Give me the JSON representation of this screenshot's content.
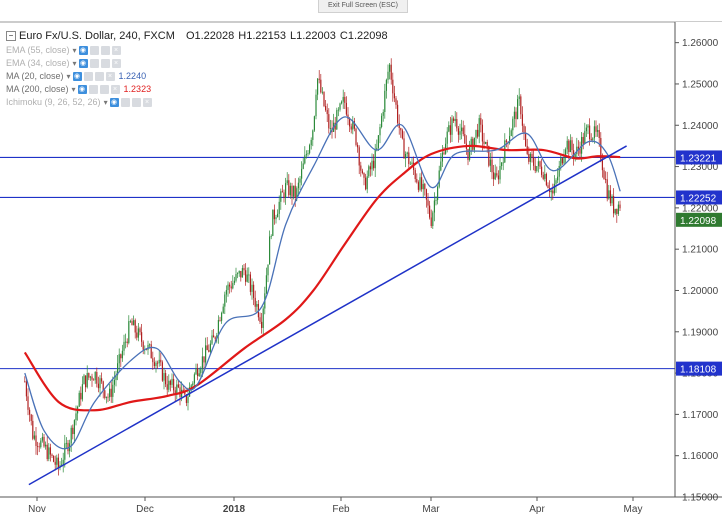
{
  "exit_button": "Exit Full Screen (ESC)",
  "legend": {
    "collapse": "−",
    "symbol": "Euro Fx/U.S. Dollar, 240, FXCM",
    "open": "O1.22028",
    "high": "H1.22153",
    "low": "L1.22003",
    "close": "C1.22098",
    "studies": [
      {
        "name": "EMA (55, close)",
        "value": "",
        "dim": true
      },
      {
        "name": "EMA (34, close)",
        "value": "",
        "dim": true
      },
      {
        "name": "MA (20, close)",
        "value": "1.2240",
        "value_color": "#3a62b4",
        "dim": false
      },
      {
        "name": "MA (200, close)",
        "value": "1.2323",
        "value_color": "#e02020",
        "dim": false
      },
      {
        "name": "Ichimoku (9, 26, 52, 26)",
        "value": "",
        "dim": true
      }
    ]
  },
  "colors": {
    "up_candle": "#2c8a3a",
    "down_candle": "#b02020",
    "ma20": "#4a72b8",
    "ma200": "#e01818",
    "trendline": "#1f32c8",
    "hline": "#1f32c8",
    "current_price_label": "#2f7a30",
    "horizontal_label": "#2233cc"
  },
  "chart_data": {
    "type": "candlestick",
    "title": "Euro Fx/U.S. Dollar, 240, FXCM",
    "ylim": [
      1.15,
      1.265
    ],
    "y_ticks": [
      "1.26000",
      "1.25000",
      "1.24000",
      "1.23000",
      "1.22000",
      "1.21000",
      "1.20000",
      "1.19000",
      "1.18000",
      "1.17000",
      "1.16000",
      "1.15000"
    ],
    "x_ticks": [
      "Nov",
      "Dec",
      "2018",
      "Feb",
      "Mar",
      "Apr",
      "May"
    ],
    "grid": false,
    "price_path": [
      {
        "t": "Oct 26",
        "y": 1.178
      },
      {
        "t": "Oct 30",
        "y": 1.165
      },
      {
        "t": "Nov 1",
        "y": 1.164
      },
      {
        "t": "Nov 3",
        "y": 1.162
      },
      {
        "t": "Nov 7",
        "y": 1.157
      },
      {
        "t": "Nov 10",
        "y": 1.164
      },
      {
        "t": "Nov 14",
        "y": 1.178
      },
      {
        "t": "Nov 17",
        "y": 1.18
      },
      {
        "t": "Nov 21",
        "y": 1.174
      },
      {
        "t": "Nov 27",
        "y": 1.192
      },
      {
        "t": "Nov 30",
        "y": 1.188
      },
      {
        "t": "Dec 5",
        "y": 1.183
      },
      {
        "t": "Dec 9",
        "y": 1.177
      },
      {
        "t": "Dec 13",
        "y": 1.176
      },
      {
        "t": "Dec 15",
        "y": 1.173
      },
      {
        "t": "Dec 19",
        "y": 1.181
      },
      {
        "t": "Dec 25",
        "y": 1.188
      },
      {
        "t": "Dec 29",
        "y": 1.2
      },
      {
        "t": "Jan 4",
        "y": 1.205
      },
      {
        "t": "Jan 9",
        "y": 1.193
      },
      {
        "t": "Jan 12",
        "y": 1.217
      },
      {
        "t": "Jan 16",
        "y": 1.225
      },
      {
        "t": "Jan 19",
        "y": 1.223
      },
      {
        "t": "Jan 24",
        "y": 1.24
      },
      {
        "t": "Jan 25",
        "y": 1.252
      },
      {
        "t": "Jan 29",
        "y": 1.238
      },
      {
        "t": "Feb 2",
        "y": 1.246
      },
      {
        "t": "Feb 6",
        "y": 1.236
      },
      {
        "t": "Feb 8",
        "y": 1.225
      },
      {
        "t": "Feb 12",
        "y": 1.233
      },
      {
        "t": "Feb 16",
        "y": 1.255
      },
      {
        "t": "Feb 20",
        "y": 1.235
      },
      {
        "t": "Feb 23",
        "y": 1.23
      },
      {
        "t": "Feb 27",
        "y": 1.223
      },
      {
        "t": "Mar 1",
        "y": 1.217
      },
      {
        "t": "Mar 5",
        "y": 1.236
      },
      {
        "t": "Mar 8",
        "y": 1.242
      },
      {
        "t": "Mar 12",
        "y": 1.233
      },
      {
        "t": "Mar 15",
        "y": 1.24
      },
      {
        "t": "Mar 20",
        "y": 1.226
      },
      {
        "t": "Mar 23",
        "y": 1.236
      },
      {
        "t": "Mar 27",
        "y": 1.246
      },
      {
        "t": "Mar 29",
        "y": 1.232
      },
      {
        "t": "Apr 3",
        "y": 1.229
      },
      {
        "t": "Apr 6",
        "y": 1.223
      },
      {
        "t": "Apr 10",
        "y": 1.236
      },
      {
        "t": "Apr 13",
        "y": 1.233
      },
      {
        "t": "Apr 17",
        "y": 1.239
      },
      {
        "t": "Apr 20",
        "y": 1.237
      },
      {
        "t": "Apr 23",
        "y": 1.224
      },
      {
        "t": "Apr 25",
        "y": 1.22
      },
      {
        "t": "Apr 27",
        "y": 1.221
      }
    ],
    "ma20_path": [
      {
        "t": "Oct 26",
        "y": 1.18
      },
      {
        "t": "Nov 3",
        "y": 1.166
      },
      {
        "t": "Nov 10",
        "y": 1.162
      },
      {
        "t": "Nov 17",
        "y": 1.173
      },
      {
        "t": "Nov 27",
        "y": 1.183
      },
      {
        "t": "Dec 5",
        "y": 1.186
      },
      {
        "t": "Dec 13",
        "y": 1.178
      },
      {
        "t": "Dec 19",
        "y": 1.177
      },
      {
        "t": "Dec 29",
        "y": 1.192
      },
      {
        "t": "Jan 9",
        "y": 1.196
      },
      {
        "t": "Jan 16",
        "y": 1.216
      },
      {
        "t": "Jan 24",
        "y": 1.23
      },
      {
        "t": "Feb 2",
        "y": 1.242
      },
      {
        "t": "Feb 12",
        "y": 1.234
      },
      {
        "t": "Feb 20",
        "y": 1.24
      },
      {
        "t": "Mar 1",
        "y": 1.225
      },
      {
        "t": "Mar 8",
        "y": 1.233
      },
      {
        "t": "Mar 20",
        "y": 1.234
      },
      {
        "t": "Mar 29",
        "y": 1.238
      },
      {
        "t": "Apr 6",
        "y": 1.229
      },
      {
        "t": "Apr 17",
        "y": 1.236
      },
      {
        "t": "Apr 23",
        "y": 1.233
      },
      {
        "t": "Apr 27",
        "y": 1.224
      }
    ],
    "ma200_path": [
      {
        "t": "Oct 26",
        "y": 1.185
      },
      {
        "t": "Nov 7",
        "y": 1.173
      },
      {
        "t": "Nov 17",
        "y": 1.171
      },
      {
        "t": "Nov 27",
        "y": 1.173
      },
      {
        "t": "Dec 9",
        "y": 1.1745
      },
      {
        "t": "Dec 19",
        "y": 1.177
      },
      {
        "t": "Jan 4",
        "y": 1.186
      },
      {
        "t": "Jan 16",
        "y": 1.193
      },
      {
        "t": "Jan 24",
        "y": 1.2
      },
      {
        "t": "Feb 2",
        "y": 1.211
      },
      {
        "t": "Feb 12",
        "y": 1.222
      },
      {
        "t": "Feb 20",
        "y": 1.228
      },
      {
        "t": "Mar 1",
        "y": 1.233
      },
      {
        "t": "Mar 12",
        "y": 1.235
      },
      {
        "t": "Mar 23",
        "y": 1.234
      },
      {
        "t": "Apr 3",
        "y": 1.234
      },
      {
        "t": "Apr 13",
        "y": 1.232
      },
      {
        "t": "Apr 20",
        "y": 1.2325
      },
      {
        "t": "Apr 27",
        "y": 1.2323
      }
    ],
    "trendline": [
      {
        "t": "Oct 28",
        "y": 1.153
      },
      {
        "t": "Apr 29",
        "y": 1.235
      }
    ],
    "horizontal_levels": [
      {
        "value": 1.23221,
        "label": "1.23221"
      },
      {
        "value": 1.22252,
        "label": "1.22252"
      },
      {
        "value": 1.18108,
        "label": "1.18108"
      }
    ],
    "last_price": {
      "value": 1.22098,
      "label": "1.22098"
    }
  }
}
